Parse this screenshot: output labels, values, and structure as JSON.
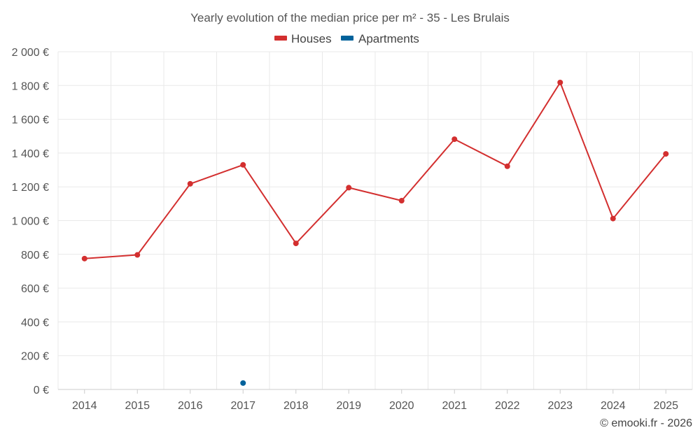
{
  "chart_data": {
    "type": "line",
    "title": "Yearly evolution of the median price per m² - 35 - Les Brulais",
    "categories": [
      "2014",
      "2015",
      "2016",
      "2017",
      "2018",
      "2019",
      "2020",
      "2021",
      "2022",
      "2023",
      "2024",
      "2025"
    ],
    "series": [
      {
        "name": "Houses",
        "color": "#d32f2f",
        "values": [
          775,
          797,
          1218,
          1330,
          865,
          1195,
          1118,
          1482,
          1322,
          1818,
          1012,
          1395
        ]
      },
      {
        "name": "Apartments",
        "color": "#00629b",
        "values": [
          null,
          null,
          null,
          38,
          null,
          null,
          null,
          null,
          null,
          null,
          null,
          null
        ]
      }
    ],
    "ylim": [
      0,
      2000
    ],
    "yticks": [
      0,
      200,
      400,
      600,
      800,
      1000,
      1200,
      1400,
      1600,
      1800,
      2000
    ],
    "ytick_labels": [
      "0 €",
      "200 €",
      "400 €",
      "600 €",
      "800 €",
      "1 000 €",
      "1 200 €",
      "1 400 €",
      "1 600 €",
      "1 800 €",
      "2 000 €"
    ],
    "xlabel": "",
    "ylabel": "",
    "legend_position": "top-center",
    "grid": true
  },
  "credit": "© emooki.fr - 2026"
}
